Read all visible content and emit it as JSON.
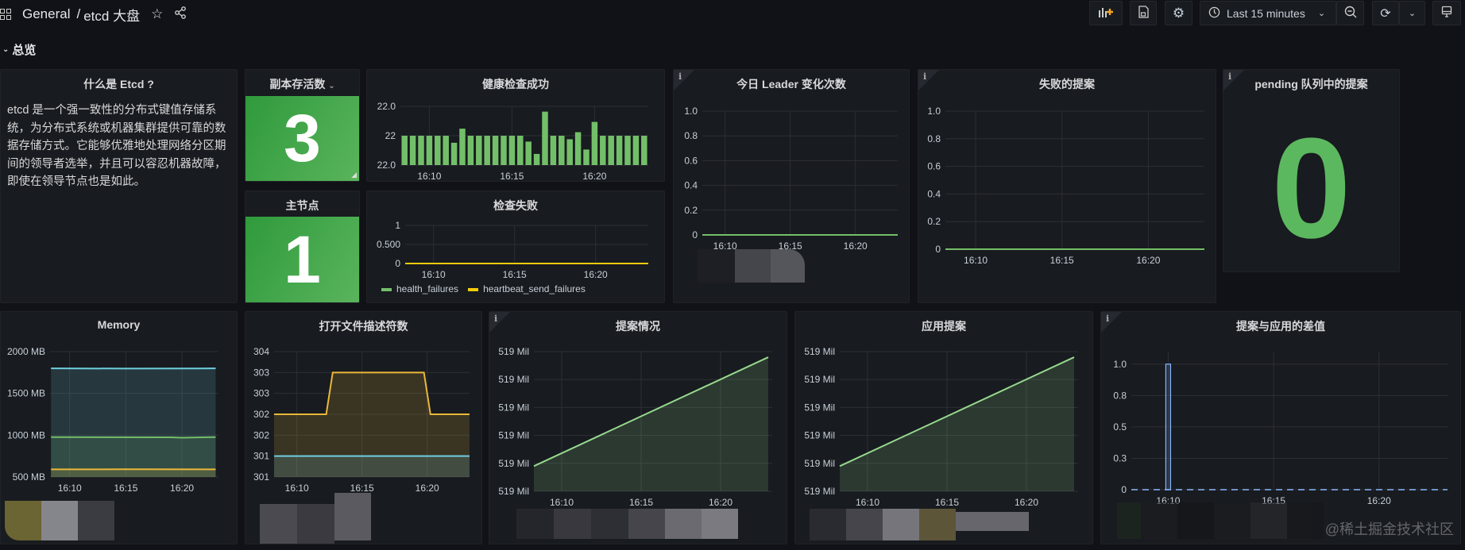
{
  "header": {
    "breadcrumb_folder": "General",
    "breadcrumb_sep": "/",
    "dashboard_title": "etcd 大盘",
    "time_range": "Last 15 minutes"
  },
  "icons": [
    "apps-grid-icon",
    "star-icon",
    "share-icon",
    "add-panel-icon",
    "save-icon",
    "gear-icon",
    "clock-icon",
    "chevron-down-icon",
    "zoom-out-icon",
    "refresh-icon",
    "tv-icon",
    "info-icon"
  ],
  "row": {
    "title": "总览"
  },
  "panels": {
    "about": {
      "title": "什么是 Etcd ?",
      "body": "etcd 是一个强一致性的分布式键值存储系统，为分布式系统或机器集群提供可靠的数据存储方式。它能够优雅地处理网络分区期间的领导者选举，并且可以容忍机器故障，即使在领导节点也是如此。"
    },
    "replicas": {
      "title": "副本存活数",
      "value": "3",
      "color": "#3fa043"
    },
    "leader_node": {
      "title": "主节点",
      "value": "1",
      "color": "#3fa043"
    },
    "health": {
      "title": "健康检查成功"
    },
    "check_fail": {
      "title": "检查失败"
    },
    "leader_changes": {
      "title": "今日 Leader 变化次数"
    },
    "failed_proposals": {
      "title": "失败的提案"
    },
    "pending": {
      "title": "pending 队列中的提案",
      "value": "0",
      "color": "#5cb85f"
    },
    "memory": {
      "title": "Memory"
    },
    "fds": {
      "title": "打开文件描述符数"
    },
    "proposals": {
      "title": "提案情况"
    },
    "applied": {
      "title": "应用提案"
    },
    "diff": {
      "title": "提案与应用的差值"
    }
  },
  "watermark": "@稀土掘金技术社区",
  "chart_data": [
    {
      "type": "bar",
      "title": "健康检查成功",
      "xlim": [
        "16:08:15",
        "16:23:15"
      ],
      "xticks": [
        "16:10",
        "16:15",
        "16:20"
      ],
      "ylim": [
        21.99,
        22.01
      ],
      "yticks": [
        {
          "value": 22.01,
          "label": "22.0"
        },
        {
          "value": 22.0,
          "label": "22"
        },
        {
          "value": 21.99,
          "label": "22.0"
        }
      ],
      "grid": true,
      "series": [
        {
          "kind": "bars",
          "color": "#73bf69",
          "x": [
            "16:08:30",
            "16:09:00",
            "16:09:30",
            "16:10:00",
            "16:10:30",
            "16:11:00",
            "16:11:30",
            "16:12:00",
            "16:12:30",
            "16:13:00",
            "16:13:30",
            "16:14:00",
            "16:14:30",
            "16:15:00",
            "16:15:30",
            "16:16:00",
            "16:16:30",
            "16:17:00",
            "16:17:30",
            "16:18:00",
            "16:18:30",
            "16:19:00",
            "16:19:30",
            "16:20:00",
            "16:20:30",
            "16:21:00",
            "16:21:30",
            "16:22:00",
            "16:22:30",
            "16:23:00"
          ],
          "y": [
            22.0,
            22.0,
            22.0,
            22.0,
            22.0,
            22.0,
            21.9976,
            22.0024,
            22.0,
            22.0,
            22.0,
            22.0,
            22.0,
            22.0,
            22.0,
            21.998,
            21.9938,
            22.0082,
            22.0,
            22.0,
            21.9988,
            22.0012,
            21.9953,
            22.0047,
            22.0,
            22.0,
            22.0,
            22.0,
            22.0,
            22.0
          ]
        }
      ]
    },
    {
      "type": "line",
      "title": "检查失败",
      "xlim": [
        "16:08:15",
        "16:23:15"
      ],
      "xticks": [
        "16:10",
        "16:15",
        "16:20"
      ],
      "ylim": [
        0,
        1
      ],
      "yticks": [
        {
          "value": 1,
          "label": "1"
        },
        {
          "value": 0.5,
          "label": "0.500"
        },
        {
          "value": 0,
          "label": "0"
        }
      ],
      "grid": true,
      "legend": "bottom",
      "series": [
        {
          "name": "health_failures",
          "kind": "line",
          "color": "#73bf69",
          "x": [
            "16:08:15",
            "16:23:15"
          ],
          "y": [
            0,
            0
          ]
        },
        {
          "name": "heartbeat_send_failures",
          "kind": "line",
          "color": "#f2cc0c",
          "x": [
            "16:08:15",
            "16:23:15"
          ],
          "y": [
            0,
            0
          ]
        }
      ]
    },
    {
      "type": "line",
      "title": "今日 Leader 变化次数",
      "xlim": [
        "16:08:15",
        "16:23:15"
      ],
      "xticks": [
        "16:10",
        "16:15",
        "16:20"
      ],
      "ylim": [
        0,
        1
      ],
      "yticks": [
        {
          "value": 1,
          "label": "1.0"
        },
        {
          "value": 0.8,
          "label": "0.8"
        },
        {
          "value": 0.6,
          "label": "0.6"
        },
        {
          "value": 0.4,
          "label": "0.4"
        },
        {
          "value": 0.2,
          "label": "0.2"
        },
        {
          "value": 0,
          "label": "0"
        }
      ],
      "grid": true,
      "series": [
        {
          "kind": "line",
          "color": "#73bf69",
          "x": [
            "16:08:15",
            "16:23:15"
          ],
          "y": [
            0,
            0
          ]
        }
      ]
    },
    {
      "type": "line",
      "title": "失败的提案",
      "xlim": [
        "16:08:15",
        "16:23:15"
      ],
      "xticks": [
        "16:10",
        "16:15",
        "16:20"
      ],
      "ylim": [
        0,
        1
      ],
      "yticks": [
        {
          "value": 1,
          "label": "1.0"
        },
        {
          "value": 0.8,
          "label": "0.8"
        },
        {
          "value": 0.6,
          "label": "0.6"
        },
        {
          "value": 0.4,
          "label": "0.4"
        },
        {
          "value": 0.2,
          "label": "0.2"
        },
        {
          "value": 0,
          "label": "0"
        }
      ],
      "grid": true,
      "series": [
        {
          "kind": "line",
          "color": "#73bf69",
          "x": [
            "16:08:15",
            "16:23:15"
          ],
          "y": [
            0,
            0
          ]
        }
      ]
    },
    {
      "type": "area",
      "title": "Memory",
      "xlim": [
        "16:08:15",
        "16:23:15"
      ],
      "xticks": [
        "16:10",
        "16:15",
        "16:20"
      ],
      "ylim": [
        500,
        2000
      ],
      "yticks": [
        {
          "value": 2000,
          "label": "2000 MB"
        },
        {
          "value": 1500,
          "label": "1500 MB"
        },
        {
          "value": 1000,
          "label": "1000 MB"
        },
        {
          "value": 500,
          "label": "500 MB"
        }
      ],
      "grid": true,
      "series": [
        {
          "kind": "line",
          "fill": true,
          "color": "#6ed0e0",
          "x": [
            "16:08:20",
            "16:15:00",
            "16:23:00"
          ],
          "y": [
            1799,
            1797,
            1799
          ]
        },
        {
          "kind": "line",
          "fill": true,
          "color": "#73bf69",
          "x": [
            "16:08:20",
            "16:19:00",
            "16:20:00",
            "16:23:00"
          ],
          "y": [
            977,
            975,
            970,
            977
          ]
        },
        {
          "kind": "line",
          "fill": true,
          "color": "#eab839",
          "x": [
            "16:08:20",
            "16:15:00",
            "16:23:00"
          ],
          "y": [
            591,
            592,
            591
          ]
        }
      ]
    },
    {
      "type": "area",
      "title": "打开文件描述符数",
      "xlim": [
        "16:08:15",
        "16:23:15"
      ],
      "xticks": [
        "16:10",
        "16:15",
        "16:20"
      ],
      "ylim": [
        301,
        304
      ],
      "yticks": [
        {
          "value": 304,
          "label": "304"
        },
        {
          "value": 303.5,
          "label": "303"
        },
        {
          "value": 303,
          "label": "303"
        },
        {
          "value": 302.5,
          "label": "302"
        },
        {
          "value": 302,
          "label": "302"
        },
        {
          "value": 301.5,
          "label": "301"
        },
        {
          "value": 301,
          "label": "301"
        }
      ],
      "grid": true,
      "series": [
        {
          "kind": "line",
          "fill": true,
          "color": "#eab839",
          "x": [
            "16:08:15",
            "16:12:15",
            "16:12:45",
            "16:19:45",
            "16:20:15",
            "16:23:15"
          ],
          "y": [
            302.5,
            302.5,
            303.5,
            303.5,
            302.5,
            302.5
          ]
        },
        {
          "kind": "line",
          "fill": true,
          "color": "#6ed0e0",
          "x": [
            "16:08:15",
            "16:23:15"
          ],
          "y": [
            301.5,
            301.5
          ]
        }
      ]
    },
    {
      "type": "area",
      "title": "提案情况",
      "xlim": [
        "16:08:15",
        "16:23:15"
      ],
      "xticks": [
        "16:10",
        "16:15",
        "16:20"
      ],
      "ylim": [
        519.0,
        519.05
      ],
      "yticks": [
        {
          "value": 519.05,
          "label": "519 Mil"
        },
        {
          "value": 519.04,
          "label": "519 Mil"
        },
        {
          "value": 519.03,
          "label": "519 Mil"
        },
        {
          "value": 519.02,
          "label": "519 Mil"
        },
        {
          "value": 519.01,
          "label": "519 Mil"
        },
        {
          "value": 519.0,
          "label": "519 Mil"
        }
      ],
      "grid": true,
      "series": [
        {
          "kind": "line",
          "fill": true,
          "color": "#96d98d",
          "x": [
            "16:08:15",
            "16:23:00"
          ],
          "y": [
            519.009,
            519.048
          ]
        }
      ]
    },
    {
      "type": "area",
      "title": "应用提案",
      "xlim": [
        "16:08:15",
        "16:23:15"
      ],
      "xticks": [
        "16:10",
        "16:15",
        "16:20"
      ],
      "ylim": [
        519.0,
        519.05
      ],
      "yticks": [
        {
          "value": 519.05,
          "label": "519 Mil"
        },
        {
          "value": 519.04,
          "label": "519 Mil"
        },
        {
          "value": 519.03,
          "label": "519 Mil"
        },
        {
          "value": 519.02,
          "label": "519 Mil"
        },
        {
          "value": 519.01,
          "label": "519 Mil"
        },
        {
          "value": 519.0,
          "label": "519 Mil"
        }
      ],
      "grid": true,
      "series": [
        {
          "kind": "line",
          "fill": true,
          "color": "#96d98d",
          "x": [
            "16:08:15",
            "16:23:00"
          ],
          "y": [
            519.009,
            519.048
          ]
        }
      ]
    },
    {
      "type": "bar",
      "title": "提案与应用的差值",
      "xlim": [
        "16:08:15",
        "16:23:15"
      ],
      "xticks": [
        "16:10",
        "16:15",
        "16:20"
      ],
      "ylim": [
        0,
        1.1
      ],
      "yticks": [
        {
          "value": 1,
          "label": "1.0"
        },
        {
          "value": 0.75,
          "label": "0.8"
        },
        {
          "value": 0.5,
          "label": "0.5"
        },
        {
          "value": 0.25,
          "label": "0.3"
        },
        {
          "value": 0,
          "label": "0"
        }
      ],
      "grid": true,
      "series": [
        {
          "kind": "outline-bars",
          "color": "#8ab8ff",
          "x": [
            "16:10:00"
          ],
          "y": [
            1
          ]
        },
        {
          "kind": "dashed-line",
          "color": "#8ab8ff",
          "x": [
            "16:08:15",
            "16:23:15"
          ],
          "y": [
            0,
            0
          ]
        }
      ]
    }
  ]
}
